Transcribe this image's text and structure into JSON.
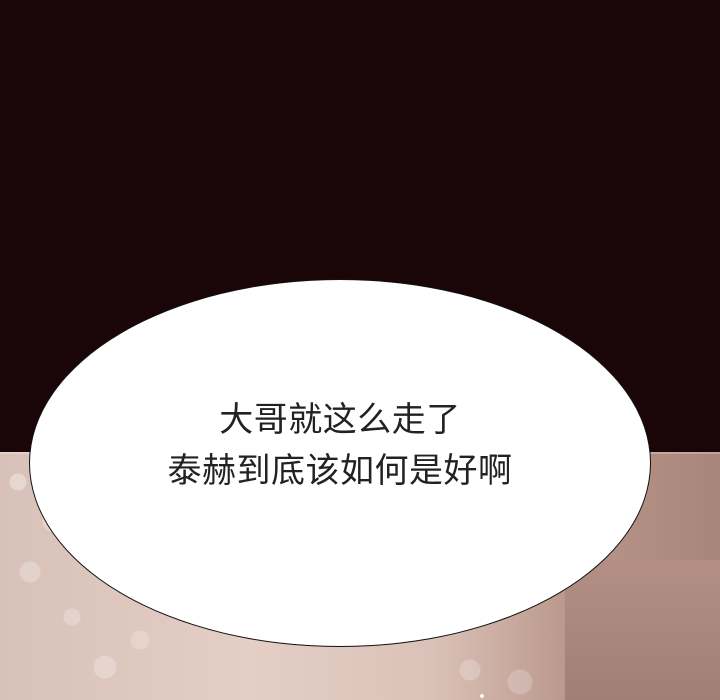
{
  "scene": {
    "top_background_color": "#1a0609",
    "bottom_background_color": "#d8c1b8"
  },
  "speech_bubble": {
    "lines": [
      "大哥就这么走了",
      "泰赫到底该如何是好啊"
    ]
  }
}
